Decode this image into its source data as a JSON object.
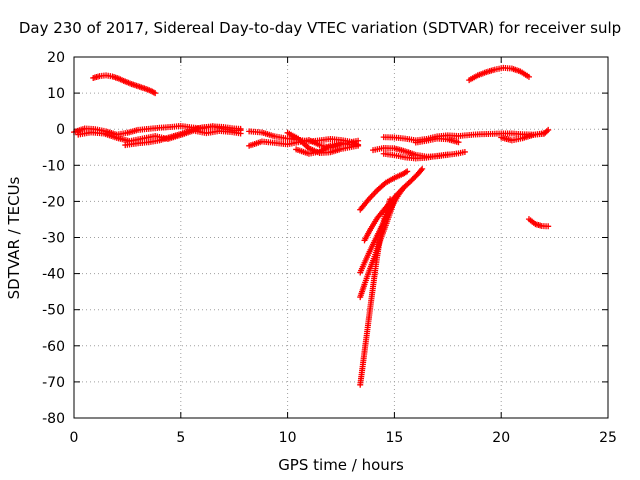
{
  "chart_data": {
    "type": "scatter",
    "title": "Day 230 of 2017, Sidereal Day-to-day VTEC variation (SDTVAR) for receiver sulp",
    "xlabel": "GPS time / hours",
    "ylabel": "SDTVAR / TECUs",
    "xlim": [
      0,
      25
    ],
    "ylim": [
      -80,
      20
    ],
    "xticks": [
      "0",
      "5",
      "10",
      "15",
      "20",
      "25"
    ],
    "yticks": [
      "20",
      "10",
      "0",
      "-10",
      "-20",
      "-30",
      "-40",
      "-50",
      "-60",
      "-70",
      "-80"
    ],
    "grid": true,
    "marker": "+",
    "color": "#ff0000",
    "series": [
      {
        "x": [
          0.9,
          1.2,
          1.5,
          1.8,
          2.1,
          2.4,
          2.7,
          3.0,
          3.3,
          3.6,
          3.8
        ],
        "y": [
          14.2,
          14.7,
          14.9,
          14.6,
          14.0,
          13.2,
          12.5,
          11.9,
          11.3,
          10.6,
          10.0
        ]
      },
      {
        "x": [
          0.0,
          0.5,
          1.0,
          1.5,
          2.0,
          2.5,
          3.0,
          3.5,
          4.0,
          4.5,
          5.0,
          5.5,
          6.0,
          6.5,
          7.0,
          7.5,
          7.8
        ],
        "y": [
          -0.8,
          0.2,
          0.0,
          -0.6,
          -1.5,
          -1.0,
          -0.2,
          0.1,
          0.4,
          0.6,
          0.9,
          0.5,
          0.2,
          0.8,
          0.1,
          -0.4,
          -0.3
        ]
      },
      {
        "x": [
          0.2,
          0.8,
          1.4,
          2.0,
          2.6,
          3.2,
          3.8,
          4.4,
          5.0,
          5.6,
          6.2,
          6.8,
          7.4,
          7.8
        ],
        "y": [
          -1.5,
          -0.9,
          -1.2,
          -2.4,
          -3.3,
          -2.6,
          -1.9,
          -2.7,
          -1.6,
          -0.4,
          -1.1,
          -0.5,
          -0.8,
          -1.2
        ]
      },
      {
        "x": [
          2.4,
          3.0,
          3.5,
          4.0,
          4.5,
          5.0,
          5.5,
          6.0,
          6.5,
          7.0,
          7.5,
          7.8
        ],
        "y": [
          -4.4,
          -3.9,
          -3.6,
          -3.1,
          -2.2,
          -1.3,
          -0.3,
          0.5,
          0.8,
          0.6,
          0.2,
          0.1
        ]
      },
      {
        "x": [
          8.2,
          8.8,
          9.4,
          10.0,
          10.5,
          11.0,
          11.5,
          12.0,
          12.5,
          13.0,
          13.3
        ],
        "y": [
          -0.6,
          -0.9,
          -2.0,
          -2.6,
          -2.9,
          -3.4,
          -3.1,
          -2.7,
          -3.0,
          -3.5,
          -3.2
        ]
      },
      {
        "x": [
          8.2,
          8.8,
          9.4,
          10.0,
          10.5,
          11.0,
          11.5,
          12.0,
          12.5,
          13.0,
          13.3
        ],
        "y": [
          -4.6,
          -3.4,
          -3.8,
          -4.2,
          -3.6,
          -3.0,
          -4.4,
          -5.1,
          -4.2,
          -3.6,
          -4.3
        ]
      },
      {
        "x": [
          10.0,
          10.5,
          11.0,
          11.5,
          12.0,
          12.5,
          13.0,
          13.3
        ],
        "y": [
          -1.0,
          -2.6,
          -5.3,
          -6.6,
          -6.4,
          -5.5,
          -4.9,
          -4.6
        ]
      },
      {
        "x": [
          10.4,
          11.0,
          11.5,
          12.0,
          12.5,
          13.0
        ],
        "y": [
          -5.6,
          -6.8,
          -6.2,
          -4.5,
          -3.8,
          -4.4
        ]
      },
      {
        "x": [
          14.5,
          15.0,
          15.5,
          16.0,
          16.5,
          17.0,
          17.5,
          18.0,
          18.5,
          19.0,
          19.5,
          20.0,
          20.5,
          21.0,
          21.5,
          22.0,
          22.2
        ],
        "y": [
          -2.2,
          -2.3,
          -2.6,
          -3.1,
          -2.7,
          -2.0,
          -1.7,
          -1.9,
          -1.6,
          -1.4,
          -1.3,
          -1.2,
          -1.2,
          -1.4,
          -1.5,
          -1.3,
          -0.2
        ]
      },
      {
        "x": [
          16.0,
          16.5,
          17.0,
          17.5,
          18.0
        ],
        "y": [
          -3.7,
          -3.2,
          -2.6,
          -2.8,
          -3.6
        ]
      },
      {
        "x": [
          20.0,
          20.5,
          21.0,
          21.5,
          22.0
        ],
        "y": [
          -2.3,
          -3.1,
          -2.5,
          -1.6,
          -1.1
        ]
      },
      {
        "x": [
          14.0,
          14.5,
          15.0,
          15.5,
          16.0,
          16.5,
          17.0,
          17.5,
          18.0,
          18.3
        ],
        "y": [
          -5.8,
          -5.2,
          -5.3,
          -6.1,
          -7.1,
          -7.6,
          -7.5,
          -7.1,
          -6.7,
          -6.3
        ]
      },
      {
        "x": [
          14.5,
          15.0,
          15.5,
          16.0,
          16.5,
          17.0,
          17.5
        ],
        "y": [
          -6.8,
          -7.2,
          -7.8,
          -8.1,
          -7.9,
          -7.4,
          -7.0
        ]
      },
      {
        "x": [
          13.4,
          13.8,
          14.2,
          14.6,
          15.0,
          15.4,
          15.6
        ],
        "y": [
          -22.3,
          -19.4,
          -16.9,
          -14.8,
          -13.5,
          -12.4,
          -11.7
        ]
      },
      {
        "x": [
          13.6,
          13.9,
          14.2,
          14.6,
          15.0,
          15.4,
          15.8,
          16.1,
          16.3
        ],
        "y": [
          -30.8,
          -27.5,
          -24.6,
          -21.7,
          -18.9,
          -16.4,
          -14.2,
          -12.4,
          -11.0
        ]
      },
      {
        "x": [
          13.4,
          13.6,
          13.8,
          14.0,
          14.2,
          14.4,
          14.6,
          14.8,
          15.0,
          15.2,
          15.4
        ],
        "y": [
          -39.7,
          -37.0,
          -34.4,
          -31.9,
          -29.4,
          -27.0,
          -24.6,
          -22.3,
          -20.1,
          -18.1,
          -16.5
        ]
      },
      {
        "x": [
          13.4,
          13.6,
          13.8,
          14.0,
          14.2,
          14.4,
          14.6,
          14.8,
          15.0
        ],
        "y": [
          -46.5,
          -43.0,
          -39.6,
          -36.4,
          -33.1,
          -29.8,
          -26.6,
          -23.2,
          -19.6
        ]
      },
      {
        "x": [
          13.4,
          13.5,
          13.6,
          13.7,
          13.8,
          13.9,
          14.0,
          14.1,
          14.2,
          14.3,
          14.4,
          14.6,
          14.8
        ],
        "y": [
          -70.8,
          -66.3,
          -61.7,
          -57.2,
          -52.6,
          -48.1,
          -43.6,
          -39.2,
          -35.0,
          -31.2,
          -27.7,
          -23.1,
          -19.4
        ]
      },
      {
        "x": [
          18.5,
          18.9,
          19.3,
          19.7,
          20.1,
          20.5,
          20.9,
          21.3
        ],
        "y": [
          13.6,
          14.9,
          15.8,
          16.5,
          17.0,
          16.8,
          16.0,
          14.5
        ]
      },
      {
        "x": [
          21.3,
          21.6,
          21.9,
          22.2
        ],
        "y": [
          -24.9,
          -26.3,
          -26.8,
          -26.9
        ]
      }
    ]
  }
}
